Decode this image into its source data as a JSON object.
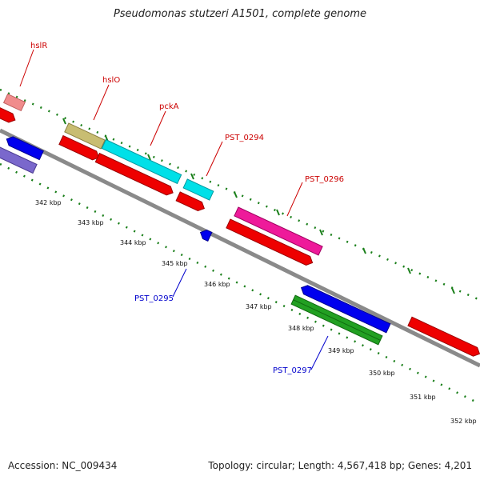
{
  "title": "Pseudomonas stutzeri A1501, complete genome",
  "footer": {
    "accession": "Accession: NC_009434",
    "summary": "Topology: circular; Length: 4,567,418 bp; Genes: 4,201"
  },
  "ticks": [
    "342 kbp",
    "343 kbp",
    "344 kbp",
    "345 kbp",
    "346 kbp",
    "347 kbp",
    "348 kbp",
    "349 kbp",
    "350 kbp",
    "351 kbp",
    "352 kbp"
  ],
  "gene_labels": {
    "hslR": "hslR",
    "hslO": "hslO",
    "pckA": "pckA",
    "PST_0294": "PST_0294",
    "PST_0295": "PST_0295",
    "PST_0296": "PST_0296",
    "PST_0297": "PST_0297"
  },
  "colors": {
    "backbone": "#8a8a8a",
    "tick_green": "#1a7f1a",
    "label_red": "#cc0000",
    "label_blue": "#0000cc",
    "red": "#ee0000",
    "blue": "#0000ee",
    "cyan": "#00e0e8",
    "magenta": "#ee1a9a",
    "olive": "#c8bd72",
    "pink": "#f08c8c",
    "purple": "#7a68cc",
    "green": "#22a022"
  }
}
